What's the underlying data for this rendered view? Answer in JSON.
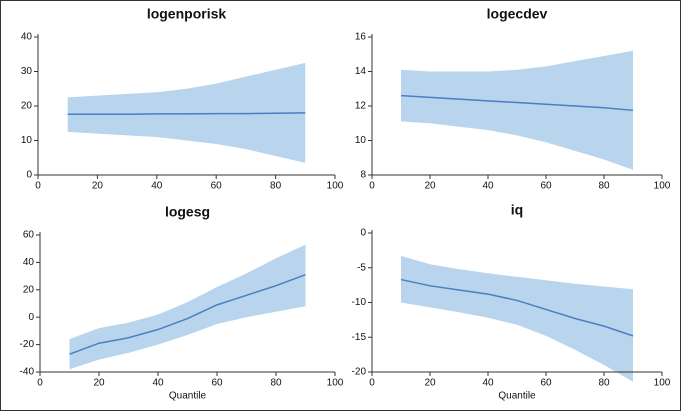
{
  "chart_data": [
    {
      "type": "line",
      "title": "logenporisk",
      "x": [
        10,
        20,
        30,
        40,
        50,
        60,
        70,
        80,
        90
      ],
      "xlim": [
        0,
        100
      ],
      "xticks": [
        0,
        20,
        40,
        60,
        80,
        100
      ],
      "ylim": [
        0,
        40
      ],
      "yticks": [
        0,
        10,
        20,
        30,
        40
      ],
      "series": [
        {
          "color": "#4a7fc1",
          "band_color": "#b9d5ee",
          "values": [
            17.6,
            17.6,
            17.6,
            17.7,
            17.7,
            17.8,
            17.8,
            17.9,
            18.0
          ],
          "upper": [
            22.5,
            23,
            23.5,
            24,
            25,
            26.5,
            28.5,
            30.5,
            32.5
          ],
          "lower": [
            12.5,
            12,
            11.5,
            11,
            10,
            9,
            7.5,
            5.5,
            3.5
          ]
        }
      ]
    },
    {
      "type": "line",
      "title": "logecdev",
      "x": [
        10,
        20,
        30,
        40,
        50,
        60,
        70,
        80,
        90
      ],
      "xlim": [
        0,
        100
      ],
      "xticks": [
        0,
        20,
        40,
        60,
        80,
        100
      ],
      "ylim": [
        8,
        16
      ],
      "yticks": [
        8,
        10,
        12,
        14,
        16
      ],
      "series": [
        {
          "color": "#4a7fc1",
          "band_color": "#b9d5ee",
          "values": [
            12.6,
            12.5,
            12.4,
            12.3,
            12.2,
            12.1,
            12.0,
            11.9,
            11.75
          ],
          "upper": [
            14.1,
            14.0,
            14.0,
            14.0,
            14.1,
            14.3,
            14.6,
            14.9,
            15.2
          ],
          "lower": [
            11.1,
            11.0,
            10.8,
            10.6,
            10.3,
            9.9,
            9.4,
            8.9,
            8.3
          ]
        }
      ]
    },
    {
      "type": "line",
      "title": "logesg",
      "xlabel": "Quantile",
      "x": [
        10,
        20,
        30,
        40,
        50,
        60,
        70,
        80,
        90
      ],
      "xlim": [
        0,
        100
      ],
      "xticks": [
        0,
        20,
        40,
        60,
        80,
        100
      ],
      "ylim": [
        -40,
        60
      ],
      "yticks": [
        -40,
        -20,
        0,
        20,
        40,
        60
      ],
      "series": [
        {
          "color": "#4a7fc1",
          "band_color": "#b9d5ee",
          "values": [
            -27,
            -19,
            -15,
            -9,
            -1,
            9,
            16,
            23,
            31
          ],
          "upper": [
            -16,
            -8,
            -4,
            2,
            11,
            22,
            32,
            43,
            53
          ],
          "lower": [
            -38,
            -31,
            -26,
            -20,
            -13,
            -5,
            0,
            4,
            8
          ]
        }
      ]
    },
    {
      "type": "line",
      "title": "iq",
      "xlabel": "Quantile",
      "x": [
        10,
        20,
        30,
        40,
        50,
        60,
        70,
        80,
        90
      ],
      "xlim": [
        0,
        100
      ],
      "xticks": [
        0,
        20,
        40,
        60,
        80,
        100
      ],
      "ylim": [
        -20,
        0
      ],
      "yticks": [
        -20,
        -15,
        -10,
        -5,
        0
      ],
      "series": [
        {
          "color": "#4a7fc1",
          "band_color": "#b9d5ee",
          "values": [
            -6.7,
            -7.6,
            -8.2,
            -8.8,
            -9.7,
            -11,
            -12.3,
            -13.4,
            -14.8
          ],
          "upper": [
            -3.3,
            -4.5,
            -5.2,
            -5.8,
            -6.3,
            -6.8,
            -7.3,
            -7.7,
            -8.1
          ],
          "lower": [
            -10,
            -10.7,
            -11.4,
            -12.2,
            -13.2,
            -14.8,
            -16.8,
            -19,
            -21.4
          ]
        }
      ]
    }
  ]
}
